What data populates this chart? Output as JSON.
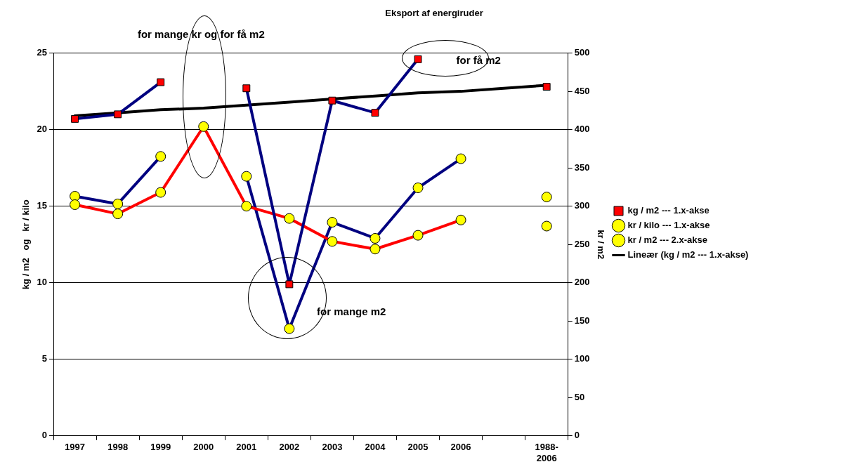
{
  "chart_data": {
    "type": "line",
    "title": "Eksport af energiruder",
    "ylabel": "kg / m2   og   kr / kilo",
    "y2label": "kr / m2",
    "categories": [
      "1997",
      "1998",
      "1999",
      "2000",
      "2001",
      "2002",
      "2003",
      "2004",
      "2005",
      "2006",
      null,
      "1988-2006"
    ],
    "series": [
      {
        "name": "kg / m2 --- 1.x-akse",
        "color": "#000080",
        "colors": [
          "#ff0000",
          "#ff0000",
          "#ff0000",
          "#ff0000",
          "#ff0000",
          "#ff0000",
          "#ff0000",
          "#ff0000",
          "#ff0000",
          "#ff0000",
          "#ff0000",
          "#ff0000"
        ],
        "marker": "square",
        "values": [
          20.7,
          21.0,
          23.1,
          null,
          22.7,
          9.9,
          21.9,
          21.1,
          24.6,
          null,
          null,
          22.8
        ]
      },
      {
        "name": "kr / kilo --- 1.x-akse",
        "color": "#ff0000",
        "colors": [
          "#ffff00",
          "#ffff00",
          "#ffff00",
          "#ffff00",
          "#ffff00",
          "#ffff00",
          "#ffff00",
          "#ffff00",
          "#ffff00",
          "#ffff00",
          "#ffff00",
          "#ffff00"
        ],
        "marker": "circle",
        "values": [
          15.1,
          14.5,
          15.9,
          20.2,
          15.0,
          14.2,
          12.7,
          12.2,
          13.1,
          14.1,
          null,
          13.7
        ]
      },
      {
        "name": "kr / m2 --- 2.x-akse",
        "color": "#000080",
        "colors": [
          "#ffff00",
          "#ffff00",
          "#ffff00",
          "#ffff00",
          "#ffff00",
          "#ffff00",
          "#ffff00",
          "#ffff00",
          "#ffff00",
          "#ffff00",
          "#ffff00",
          "#ffff00"
        ],
        "marker": "circle",
        "axis": "y2",
        "values": [
          313,
          303,
          365,
          null,
          339,
          140,
          279,
          258,
          324,
          362,
          null,
          312
        ]
      },
      {
        "name": "Lineær (kg / m2 --- 1.x-akse)",
        "type": "line",
        "color": "#000000",
        "marker": "none",
        "values": [
          20.9,
          21.1,
          21.3,
          21.4,
          21.6,
          21.8,
          22.0,
          22.2,
          22.4,
          22.5,
          22.7,
          22.9
        ]
      }
    ],
    "ylim": [
      0,
      25
    ],
    "yticks": [
      0,
      5,
      10,
      15,
      20,
      25
    ],
    "y2lim": [
      0,
      500
    ],
    "y2ticks": [
      0,
      50,
      100,
      150,
      200,
      250,
      300,
      350,
      400,
      450,
      500
    ],
    "grid": "y",
    "legend": "right",
    "annotations": [
      "for mange kr og for få m2",
      "for mange m2",
      "for få m2"
    ]
  }
}
